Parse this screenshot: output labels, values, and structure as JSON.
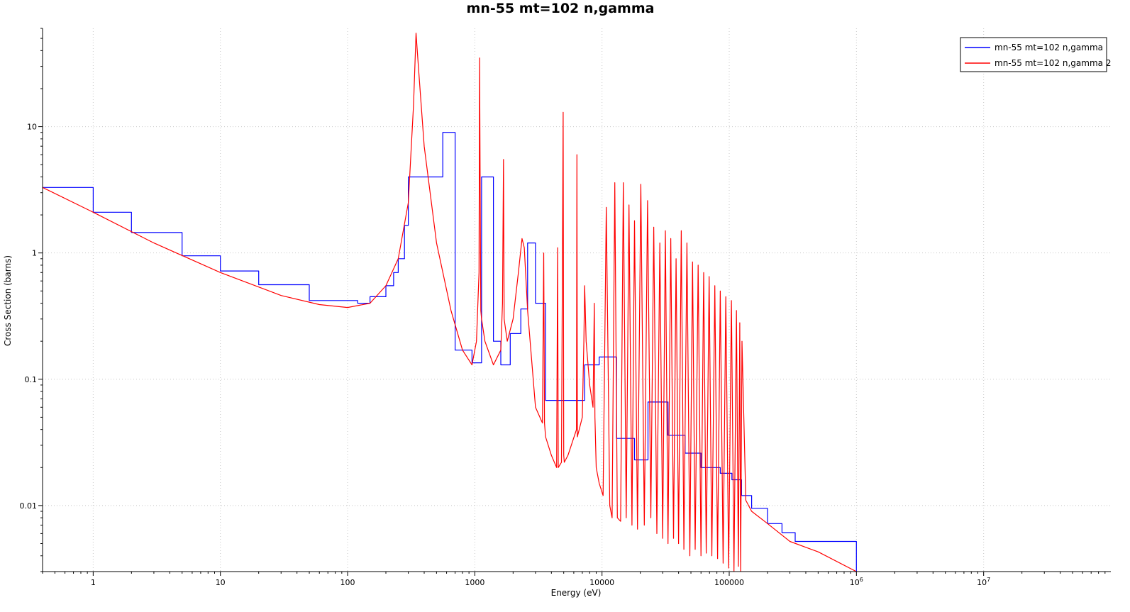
{
  "chart_data": {
    "type": "line",
    "title": "mn-55 mt=102 n,gamma",
    "xlabel": "Energy (eV)",
    "ylabel": "Cross Section (barns)",
    "x_scale": "log",
    "y_scale": "log",
    "xlim": [
      0.4,
      100000000
    ],
    "ylim": [
      0.003,
      60
    ],
    "grid": true,
    "legend_position": "top-right",
    "x_ticks": [
      {
        "value": 1,
        "label": "1"
      },
      {
        "value": 10,
        "label": "10"
      },
      {
        "value": 100,
        "label": "100"
      },
      {
        "value": 1000,
        "label": "1000"
      },
      {
        "value": 10000,
        "label": "10000"
      },
      {
        "value": 100000,
        "label": "100000"
      },
      {
        "value": 1000000,
        "base": "10",
        "exp": "6"
      },
      {
        "value": 10000000,
        "base": "10",
        "exp": "7"
      }
    ],
    "y_ticks": [
      {
        "value": 10,
        "label": "10"
      },
      {
        "value": 1,
        "label": "1"
      },
      {
        "value": 0.1,
        "label": "0.1"
      },
      {
        "value": 0.01,
        "label": "0.01"
      }
    ],
    "series": [
      {
        "name": "mn-55 mt=102 n,gamma",
        "color": "#0000ff",
        "style": "step",
        "x": [
          0.4,
          1,
          2,
          5,
          10,
          20,
          50,
          120,
          150,
          200,
          230,
          250,
          280,
          300,
          560,
          700,
          950,
          1130,
          1400,
          1600,
          1900,
          2300,
          2600,
          3000,
          3600,
          5000,
          7300,
          8000,
          9500,
          13000,
          18000,
          23000,
          33000,
          45000,
          60000,
          85000,
          105000,
          125000,
          150000,
          200000,
          260000,
          330000,
          1000000
        ],
        "y": [
          3.3,
          2.1,
          1.45,
          0.95,
          0.72,
          0.56,
          0.42,
          0.4,
          0.45,
          0.55,
          0.7,
          0.9,
          1.65,
          4.0,
          9.0,
          0.17,
          0.135,
          4.0,
          0.2,
          0.13,
          0.23,
          0.36,
          1.2,
          0.4,
          0.068,
          0.068,
          0.13,
          0.13,
          0.15,
          0.034,
          0.023,
          0.066,
          0.036,
          0.026,
          0.02,
          0.018,
          0.016,
          0.012,
          0.0095,
          0.0072,
          0.0061,
          0.0052,
          0.003
        ]
      },
      {
        "name": "mn-55 mt=102 n,gamma 2",
        "color": "#ff0000",
        "style": "line",
        "x": [
          0.4,
          1,
          3,
          10,
          30,
          60,
          100,
          150,
          200,
          250,
          300,
          330,
          345,
          360,
          400,
          500,
          650,
          800,
          950,
          1030,
          1080,
          1090,
          1100,
          1115,
          1130,
          1200,
          1400,
          1600,
          1650,
          1680,
          1700,
          1800,
          2000,
          2200,
          2350,
          2450,
          2600,
          3000,
          3400,
          3480,
          3530,
          3600,
          4000,
          4400,
          4480,
          4530,
          4800,
          4950,
          5000,
          5050,
          5400,
          6300,
          6350,
          6400,
          7000,
          7200,
          7300,
          7500,
          8000,
          8500,
          8700,
          8800,
          9000,
          9500,
          10200,
          10800,
          11500,
          12000,
          12600,
          13200,
          14000,
          14700,
          15500,
          16300,
          17200,
          18000,
          19000,
          20200,
          21500,
          22800,
          24200,
          25500,
          27000,
          28500,
          30000,
          31500,
          33000,
          34700,
          36500,
          38200,
          40000,
          42000,
          44000,
          46500,
          49000,
          51500,
          54000,
          57000,
          60000,
          63000,
          66000,
          69500,
          73000,
          77000,
          81000,
          85000,
          89500,
          94000,
          99000,
          104000,
          109000,
          114000,
          118000,
          121000,
          123000,
          126000,
          135000,
          150000,
          200000,
          300000,
          500000,
          1000000
        ],
        "y": [
          3.3,
          2.1,
          1.2,
          0.7,
          0.46,
          0.39,
          0.37,
          0.4,
          0.55,
          0.9,
          2.5,
          15,
          55,
          30,
          7,
          1.2,
          0.35,
          0.17,
          0.13,
          0.2,
          0.7,
          35,
          4.5,
          0.35,
          0.3,
          0.2,
          0.13,
          0.17,
          0.4,
          5.5,
          0.3,
          0.2,
          0.3,
          0.7,
          1.3,
          1.1,
          0.35,
          0.06,
          0.045,
          1.0,
          0.045,
          0.035,
          0.025,
          0.02,
          1.1,
          0.02,
          0.022,
          13,
          0.025,
          0.022,
          0.025,
          0.04,
          6.0,
          0.035,
          0.05,
          0.2,
          0.55,
          0.2,
          0.09,
          0.06,
          0.4,
          0.05,
          0.02,
          0.015,
          0.012,
          2.3,
          0.01,
          0.008,
          3.6,
          0.008,
          0.0075,
          3.6,
          0.008,
          2.4,
          0.007,
          1.8,
          0.0065,
          3.5,
          0.007,
          2.6,
          0.008,
          1.6,
          0.006,
          1.2,
          0.0055,
          1.5,
          0.005,
          1.3,
          0.0055,
          0.9,
          0.005,
          1.5,
          0.0045,
          1.2,
          0.004,
          0.85,
          0.0045,
          0.8,
          0.004,
          0.7,
          0.0042,
          0.65,
          0.004,
          0.55,
          0.0038,
          0.5,
          0.0035,
          0.45,
          0.0032,
          0.42,
          0.003,
          0.35,
          0.0033,
          0.28,
          0.003,
          0.2,
          0.011,
          0.009,
          0.0072,
          0.0052,
          0.0043,
          0.003
        ]
      }
    ]
  }
}
